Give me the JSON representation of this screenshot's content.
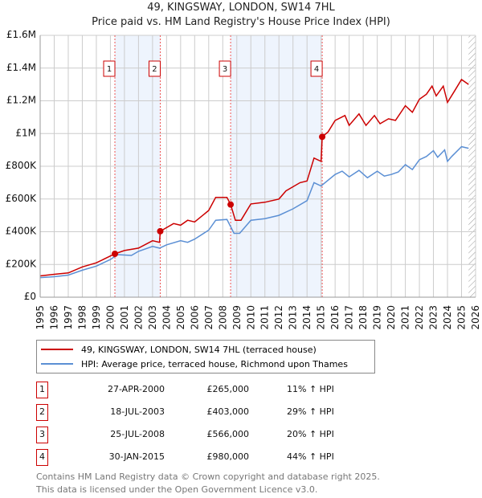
{
  "title": "49, KINGSWAY, LONDON, SW14 7HL",
  "subtitle": "Price paid vs. HM Land Registry's House Price Index (HPI)",
  "chart_data": {
    "type": "line",
    "xlim": [
      1995,
      2026
    ],
    "ylim": [
      0,
      1600000
    ],
    "y_ticks": [
      {
        "v": 0,
        "label": "£0"
      },
      {
        "v": 200000,
        "label": "£200K"
      },
      {
        "v": 400000,
        "label": "£400K"
      },
      {
        "v": 600000,
        "label": "£600K"
      },
      {
        "v": 800000,
        "label": "£800K"
      },
      {
        "v": 1000000,
        "label": "£1M"
      },
      {
        "v": 1200000,
        "label": "£1.2M"
      },
      {
        "v": 1400000,
        "label": "£1.4M"
      },
      {
        "v": 1600000,
        "label": "£1.6M"
      }
    ],
    "x_ticks": [
      "1995",
      "1996",
      "1997",
      "1998",
      "1999",
      "2000",
      "2001",
      "2002",
      "2003",
      "2004",
      "2005",
      "2006",
      "2007",
      "2008",
      "2009",
      "2010",
      "2011",
      "2012",
      "2013",
      "2014",
      "2015",
      "2016",
      "2017",
      "2018",
      "2019",
      "2020",
      "2021",
      "2022",
      "2023",
      "2024",
      "2025",
      "2026"
    ],
    "shaded": [
      [
        2000.32,
        2003.55
      ],
      [
        2008.56,
        2015.08
      ]
    ],
    "hatched_from": 2025.5,
    "series": [
      {
        "name": "49, KINGSWAY, LONDON, SW14 7HL (terraced house)",
        "color": "#cc0000",
        "x": [
          1995,
          1996,
          1997,
          1998,
          1999,
          2000.32,
          2001,
          2002,
          2003,
          2003.5,
          2003.55,
          2004.5,
          2005,
          2005.5,
          2006,
          2007,
          2007.5,
          2008.3,
          2008.56,
          2008.9,
          2009.3,
          2010,
          2011,
          2012,
          2012.5,
          2013.5,
          2014,
          2014.5,
          2015.0,
          2015.08,
          2015.5,
          2016,
          2016.7,
          2017,
          2017.7,
          2018.2,
          2018.8,
          2019.2,
          2019.8,
          2020.3,
          2021,
          2021.5,
          2022,
          2022.5,
          2022.9,
          2023.2,
          2023.7,
          2024,
          2024.5,
          2025,
          2025.5
        ],
        "y": [
          130000,
          140000,
          148000,
          185000,
          210000,
          265000,
          285000,
          300000,
          345000,
          335000,
          403000,
          450000,
          440000,
          470000,
          460000,
          530000,
          610000,
          610000,
          566000,
          470000,
          470000,
          570000,
          580000,
          600000,
          650000,
          700000,
          710000,
          850000,
          830000,
          980000,
          1010000,
          1080000,
          1110000,
          1050000,
          1120000,
          1050000,
          1110000,
          1060000,
          1090000,
          1080000,
          1170000,
          1130000,
          1210000,
          1240000,
          1290000,
          1230000,
          1290000,
          1190000,
          1260000,
          1330000,
          1300000
        ]
      },
      {
        "name": "HPI: Average price, terraced house, Richmond upon Thames",
        "color": "#5b8fd4",
        "x": [
          1995,
          1996,
          1997,
          1998,
          1999,
          2000,
          2000.5,
          2001.5,
          2002,
          2003,
          2003.5,
          2004,
          2005,
          2005.5,
          2006,
          2007,
          2007.5,
          2008.3,
          2008.8,
          2009.2,
          2010,
          2011,
          2012,
          2013,
          2014,
          2014.5,
          2015,
          2016,
          2016.5,
          2017,
          2017.7,
          2018.3,
          2019,
          2019.5,
          2020,
          2020.5,
          2021,
          2021.5,
          2022,
          2022.5,
          2023,
          2023.3,
          2023.8,
          2024,
          2024.3,
          2025,
          2025.5
        ],
        "y": [
          120000,
          125000,
          135000,
          165000,
          190000,
          230000,
          260000,
          255000,
          280000,
          310000,
          300000,
          320000,
          345000,
          335000,
          355000,
          410000,
          470000,
          475000,
          390000,
          390000,
          470000,
          480000,
          500000,
          540000,
          590000,
          700000,
          680000,
          750000,
          770000,
          735000,
          775000,
          730000,
          770000,
          740000,
          750000,
          765000,
          810000,
          780000,
          840000,
          860000,
          895000,
          855000,
          900000,
          830000,
          860000,
          920000,
          910000
        ]
      }
    ],
    "sales": [
      {
        "n": "1",
        "x": 2000.32,
        "y": 265000
      },
      {
        "n": "2",
        "x": 2003.55,
        "y": 403000
      },
      {
        "n": "3",
        "x": 2008.56,
        "y": 566000
      },
      {
        "n": "4",
        "x": 2015.08,
        "y": 980000
      }
    ]
  },
  "legend": {
    "red": "49, KINGSWAY, LONDON, SW14 7HL (terraced house)",
    "blue": "HPI: Average price, terraced house, Richmond upon Thames"
  },
  "table": [
    {
      "n": "1",
      "date": "27-APR-2000",
      "price": "£265,000",
      "hpi": "11% ↑ HPI"
    },
    {
      "n": "2",
      "date": "18-JUL-2003",
      "price": "£403,000",
      "hpi": "29% ↑ HPI"
    },
    {
      "n": "3",
      "date": "25-JUL-2008",
      "price": "£566,000",
      "hpi": "20% ↑ HPI"
    },
    {
      "n": "4",
      "date": "30-JAN-2015",
      "price": "£980,000",
      "hpi": "44% ↑ HPI"
    }
  ],
  "footer": {
    "line1": "Contains HM Land Registry data © Crown copyright and database right 2025.",
    "line2": "This data is licensed under the Open Government Licence v3.0."
  }
}
